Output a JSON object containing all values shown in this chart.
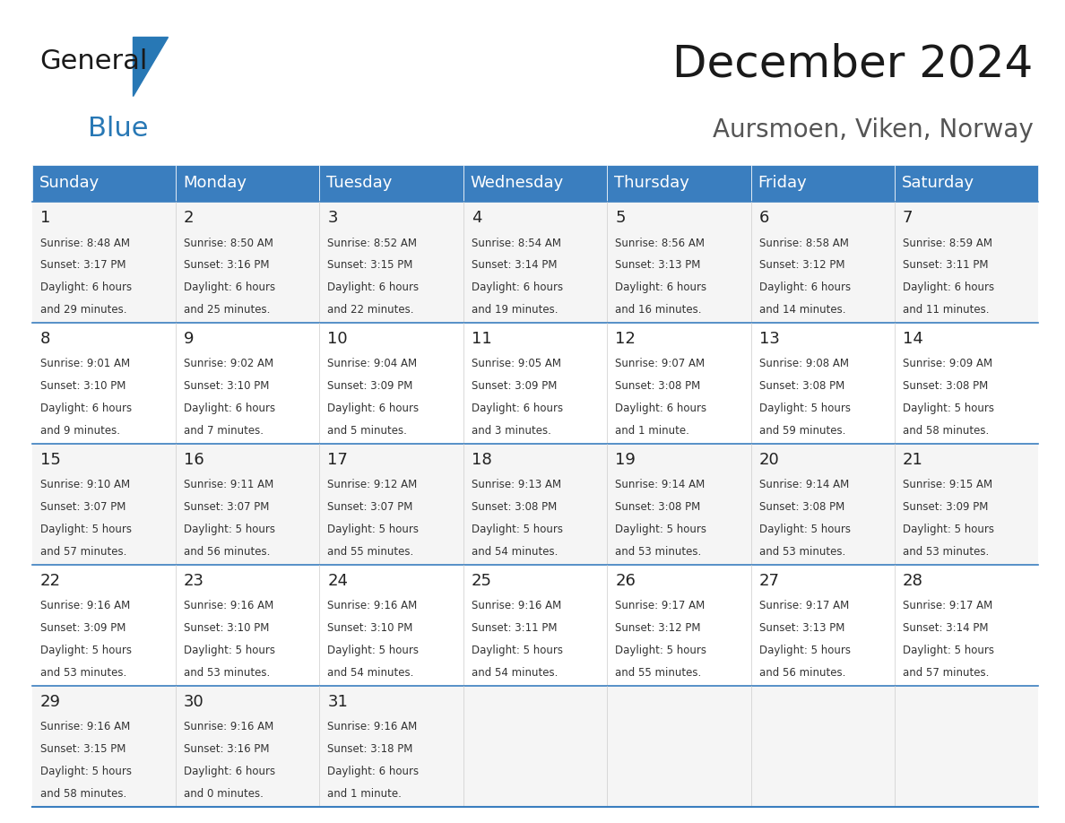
{
  "title": "December 2024",
  "subtitle": "Aursmoen, Viken, Norway",
  "header_color": "#3a7ebf",
  "header_text_color": "#ffffff",
  "border_color": "#3a7ebf",
  "row_bg_odd": "#f5f5f5",
  "row_bg_even": "#ffffff",
  "day_names": [
    "Sunday",
    "Monday",
    "Tuesday",
    "Wednesday",
    "Thursday",
    "Friday",
    "Saturday"
  ],
  "title_fontsize": 36,
  "subtitle_fontsize": 20,
  "day_header_fontsize": 13,
  "day_num_fontsize": 13,
  "cell_text_fontsize": 8.5,
  "weeks": [
    [
      {
        "day": 1,
        "sunrise": "8:48 AM",
        "sunset": "3:17 PM",
        "daylight_h": "6 hours",
        "daylight_m": "29 minutes"
      },
      {
        "day": 2,
        "sunrise": "8:50 AM",
        "sunset": "3:16 PM",
        "daylight_h": "6 hours",
        "daylight_m": "25 minutes"
      },
      {
        "day": 3,
        "sunrise": "8:52 AM",
        "sunset": "3:15 PM",
        "daylight_h": "6 hours",
        "daylight_m": "22 minutes"
      },
      {
        "day": 4,
        "sunrise": "8:54 AM",
        "sunset": "3:14 PM",
        "daylight_h": "6 hours",
        "daylight_m": "19 minutes"
      },
      {
        "day": 5,
        "sunrise": "8:56 AM",
        "sunset": "3:13 PM",
        "daylight_h": "6 hours",
        "daylight_m": "16 minutes"
      },
      {
        "day": 6,
        "sunrise": "8:58 AM",
        "sunset": "3:12 PM",
        "daylight_h": "6 hours",
        "daylight_m": "14 minutes"
      },
      {
        "day": 7,
        "sunrise": "8:59 AM",
        "sunset": "3:11 PM",
        "daylight_h": "6 hours",
        "daylight_m": "11 minutes"
      }
    ],
    [
      {
        "day": 8,
        "sunrise": "9:01 AM",
        "sunset": "3:10 PM",
        "daylight_h": "6 hours",
        "daylight_m": "9 minutes"
      },
      {
        "day": 9,
        "sunrise": "9:02 AM",
        "sunset": "3:10 PM",
        "daylight_h": "6 hours",
        "daylight_m": "7 minutes"
      },
      {
        "day": 10,
        "sunrise": "9:04 AM",
        "sunset": "3:09 PM",
        "daylight_h": "6 hours",
        "daylight_m": "5 minutes"
      },
      {
        "day": 11,
        "sunrise": "9:05 AM",
        "sunset": "3:09 PM",
        "daylight_h": "6 hours",
        "daylight_m": "3 minutes"
      },
      {
        "day": 12,
        "sunrise": "9:07 AM",
        "sunset": "3:08 PM",
        "daylight_h": "6 hours",
        "daylight_m": "1 minute"
      },
      {
        "day": 13,
        "sunrise": "9:08 AM",
        "sunset": "3:08 PM",
        "daylight_h": "5 hours",
        "daylight_m": "59 minutes"
      },
      {
        "day": 14,
        "sunrise": "9:09 AM",
        "sunset": "3:08 PM",
        "daylight_h": "5 hours",
        "daylight_m": "58 minutes"
      }
    ],
    [
      {
        "day": 15,
        "sunrise": "9:10 AM",
        "sunset": "3:07 PM",
        "daylight_h": "5 hours",
        "daylight_m": "57 minutes"
      },
      {
        "day": 16,
        "sunrise": "9:11 AM",
        "sunset": "3:07 PM",
        "daylight_h": "5 hours",
        "daylight_m": "56 minutes"
      },
      {
        "day": 17,
        "sunrise": "9:12 AM",
        "sunset": "3:07 PM",
        "daylight_h": "5 hours",
        "daylight_m": "55 minutes"
      },
      {
        "day": 18,
        "sunrise": "9:13 AM",
        "sunset": "3:08 PM",
        "daylight_h": "5 hours",
        "daylight_m": "54 minutes"
      },
      {
        "day": 19,
        "sunrise": "9:14 AM",
        "sunset": "3:08 PM",
        "daylight_h": "5 hours",
        "daylight_m": "53 minutes"
      },
      {
        "day": 20,
        "sunrise": "9:14 AM",
        "sunset": "3:08 PM",
        "daylight_h": "5 hours",
        "daylight_m": "53 minutes"
      },
      {
        "day": 21,
        "sunrise": "9:15 AM",
        "sunset": "3:09 PM",
        "daylight_h": "5 hours",
        "daylight_m": "53 minutes"
      }
    ],
    [
      {
        "day": 22,
        "sunrise": "9:16 AM",
        "sunset": "3:09 PM",
        "daylight_h": "5 hours",
        "daylight_m": "53 minutes"
      },
      {
        "day": 23,
        "sunrise": "9:16 AM",
        "sunset": "3:10 PM",
        "daylight_h": "5 hours",
        "daylight_m": "53 minutes"
      },
      {
        "day": 24,
        "sunrise": "9:16 AM",
        "sunset": "3:10 PM",
        "daylight_h": "5 hours",
        "daylight_m": "54 minutes"
      },
      {
        "day": 25,
        "sunrise": "9:16 AM",
        "sunset": "3:11 PM",
        "daylight_h": "5 hours",
        "daylight_m": "54 minutes"
      },
      {
        "day": 26,
        "sunrise": "9:17 AM",
        "sunset": "3:12 PM",
        "daylight_h": "5 hours",
        "daylight_m": "55 minutes"
      },
      {
        "day": 27,
        "sunrise": "9:17 AM",
        "sunset": "3:13 PM",
        "daylight_h": "5 hours",
        "daylight_m": "56 minutes"
      },
      {
        "day": 28,
        "sunrise": "9:17 AM",
        "sunset": "3:14 PM",
        "daylight_h": "5 hours",
        "daylight_m": "57 minutes"
      }
    ],
    [
      {
        "day": 29,
        "sunrise": "9:16 AM",
        "sunset": "3:15 PM",
        "daylight_h": "5 hours",
        "daylight_m": "58 minutes"
      },
      {
        "day": 30,
        "sunrise": "9:16 AM",
        "sunset": "3:16 PM",
        "daylight_h": "6 hours",
        "daylight_m": "0 minutes"
      },
      {
        "day": 31,
        "sunrise": "9:16 AM",
        "sunset": "3:18 PM",
        "daylight_h": "6 hours",
        "daylight_m": "1 minute"
      },
      null,
      null,
      null,
      null
    ]
  ]
}
